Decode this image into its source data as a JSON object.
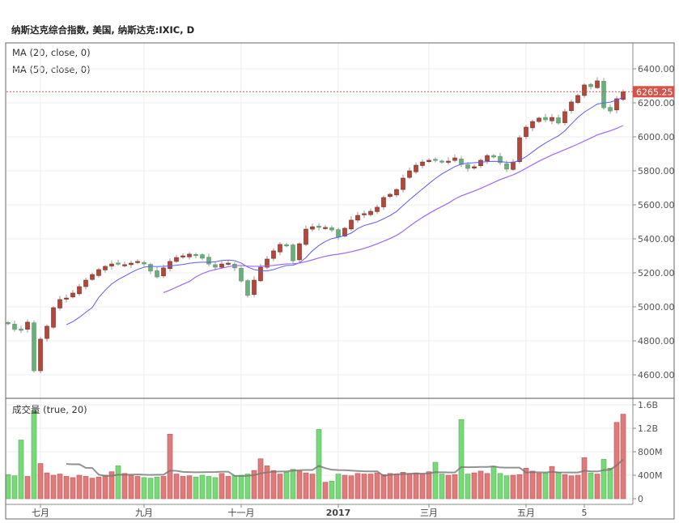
{
  "header": {
    "title": "纳斯达克综合指数, 美国, 纳斯达克:IXIC, D"
  },
  "indicators": {
    "ma20": "MA (20, close, 0)",
    "ma50": "MA (50, close, 0)",
    "volume": "成交量 (true, 20)"
  },
  "last_price": "6265.25",
  "colors": {
    "up": "#b5473a",
    "down": "#6aae7c",
    "ma20": "#5b5bff",
    "ma50": "#a066ff",
    "vol_up": "#e07b7b",
    "vol_down": "#79d879",
    "last": "#d2554a"
  },
  "chart_data": [
    {
      "type": "candlestick",
      "title": "纳斯达克综合指数, 美国, 纳斯达克:IXIC, D",
      "ylim": [
        4530,
        6480
      ],
      "y_ticks": [
        "6400.00",
        "6200.00",
        "6000.00",
        "5800.00",
        "5600.00",
        "5400.00",
        "5200.00",
        "5000.00",
        "4800.00",
        "4600.00"
      ],
      "y_tick_values": [
        6400,
        6200,
        6000,
        5800,
        5600,
        5400,
        5200,
        5000,
        4800,
        4600
      ],
      "x_ticks": [
        {
          "label": "七月",
          "bar": 5
        },
        {
          "label": "九月",
          "bar": 21
        },
        {
          "label": "十一月",
          "bar": 36
        },
        {
          "label": "2017",
          "bar": 51
        },
        {
          "label": "三月",
          "bar": 65
        },
        {
          "label": "五月",
          "bar": 80
        },
        {
          "label": "5",
          "bar": 89
        }
      ],
      "close": [
        4900,
        4867,
        4862,
        4910,
        4624,
        4810,
        4886,
        4995,
        5043,
        5052,
        5081,
        5119,
        5157,
        5190,
        5219,
        5238,
        5252,
        5252,
        5248,
        5257,
        5267,
        5252,
        5210,
        5176,
        5229,
        5267,
        5290,
        5300,
        5310,
        5305,
        5286,
        5252,
        5233,
        5252,
        5257,
        5229,
        5152,
        5067,
        5157,
        5233,
        5281,
        5329,
        5367,
        5362,
        5271,
        5371,
        5457,
        5471,
        5467,
        5467,
        5452,
        5410,
        5462,
        5510,
        5538,
        5548,
        5562,
        5586,
        5643,
        5662,
        5690,
        5757,
        5800,
        5833,
        5852,
        5862,
        5862,
        5857,
        5857,
        5876,
        5838,
        5814,
        5824,
        5862,
        5890,
        5881,
        5848,
        5810,
        5852,
        5995,
        6057,
        6090,
        6110,
        6100,
        6114,
        6081,
        6148,
        6205,
        6243,
        6305,
        6295,
        6329,
        6171,
        6152,
        6224,
        6265.25
      ],
      "series": [
        {
          "name": "MA (20, close, 0)"
        },
        {
          "name": "MA (50, close, 0)"
        }
      ]
    },
    {
      "type": "bar",
      "title": "成交量 (true, 20)",
      "ylim": [
        0,
        1600
      ],
      "y_ticks": [
        "1.6B",
        "1.2B",
        "800M",
        "400M",
        "0"
      ],
      "y_tick_values": [
        1600,
        1200,
        800,
        400,
        0
      ],
      "unit": "M",
      "volume": [
        410,
        390,
        1000,
        380,
        1500,
        600,
        440,
        400,
        420,
        380,
        360,
        400,
        380,
        350,
        370,
        400,
        460,
        560,
        430,
        400,
        380,
        360,
        350,
        370,
        380,
        1100,
        420,
        380,
        390,
        370,
        400,
        380,
        360,
        430,
        380,
        390,
        400,
        420,
        480,
        680,
        560,
        480,
        420,
        450,
        500,
        470,
        440,
        420,
        1180,
        280,
        300,
        420,
        400,
        390,
        430,
        420,
        420,
        440,
        410,
        430,
        420,
        450,
        430,
        440,
        420,
        460,
        620,
        420,
        400,
        410,
        1350,
        420,
        440,
        470,
        430,
        550,
        430,
        390,
        400,
        410,
        520,
        470,
        430,
        440,
        550,
        450,
        410,
        390,
        400,
        700,
        440,
        420,
        670,
        520,
        1300,
        1440
      ]
    }
  ]
}
